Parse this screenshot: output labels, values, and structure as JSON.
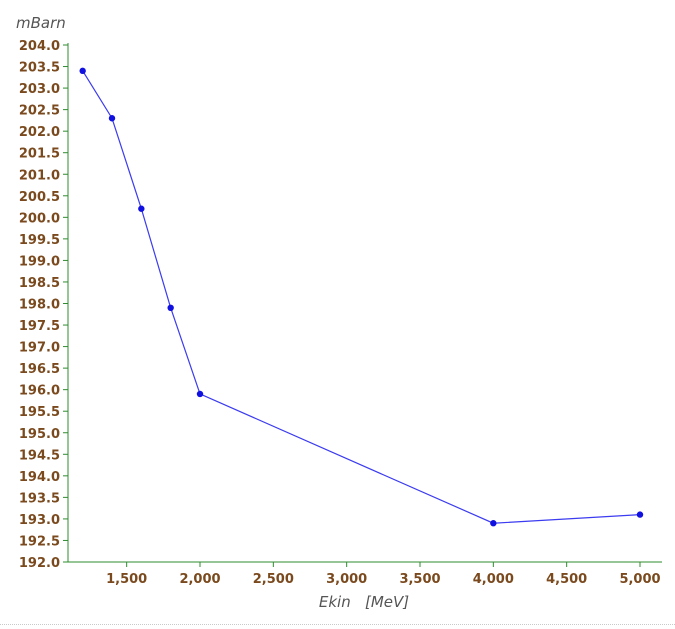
{
  "chart_data": {
    "type": "line",
    "ylabel": "mBarn",
    "xlabel": "Ekin   [MeV]",
    "xlim": [
      1100,
      5150
    ],
    "ylim": [
      192.0,
      204.0
    ],
    "x_ticks": [
      1500,
      2000,
      2500,
      3000,
      3500,
      4000,
      4500,
      5000
    ],
    "x_tick_labels": [
      "1,500",
      "2,000",
      "2,500",
      "3,000",
      "3,500",
      "4,000",
      "4,500",
      "5,000"
    ],
    "y_ticks": [
      192.0,
      192.5,
      193.0,
      193.5,
      194.0,
      194.5,
      195.0,
      195.5,
      196.0,
      196.5,
      197.0,
      197.5,
      198.0,
      198.5,
      199.0,
      199.5,
      200.0,
      200.5,
      201.0,
      201.5,
      202.0,
      202.5,
      203.0,
      203.5,
      204.0
    ],
    "y_tick_labels": [
      "192.0",
      "192.5",
      "193.0",
      "193.5",
      "194.0",
      "194.5",
      "195.0",
      "195.5",
      "196.0",
      "196.5",
      "197.0",
      "197.5",
      "198.0",
      "198.5",
      "199.0",
      "199.5",
      "200.0",
      "200.5",
      "201.0",
      "201.5",
      "202.0",
      "202.5",
      "203.0",
      "203.5",
      "204.0"
    ],
    "series": [
      {
        "x": [
          1200,
          1400,
          1600,
          1800,
          2000,
          4000,
          5000
        ],
        "y": [
          203.4,
          202.3,
          200.2,
          197.9,
          195.9,
          192.9,
          193.1
        ]
      }
    ],
    "colors": {
      "line": "#3b3bf0",
      "marker": "#1010e0",
      "axis": "#2e8b2e",
      "tick_label": "#7a4a1e"
    },
    "grid": false
  }
}
